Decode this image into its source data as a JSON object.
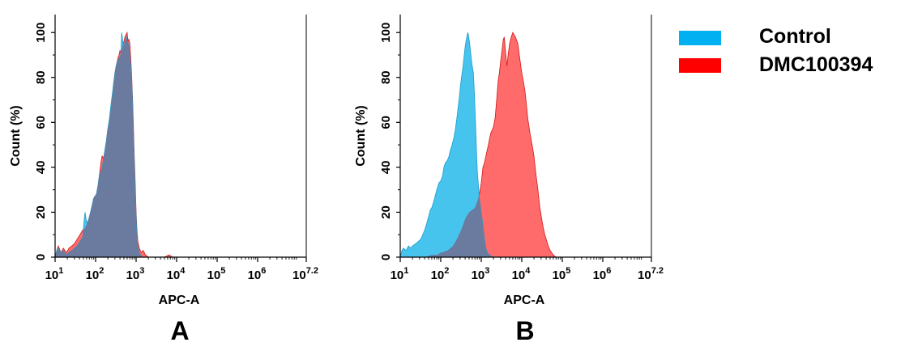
{
  "colors": {
    "control": "#46c4ee",
    "sample": "#ff6b6b",
    "overlap": "#6a7b9f",
    "axis": "#000000"
  },
  "legend": {
    "items": [
      {
        "name": "Control",
        "color": "#00b0f0"
      },
      {
        "name": "DMC100394",
        "color": "#ff0000"
      }
    ]
  },
  "chart_data": [
    {
      "type": "area",
      "panel_label": "A",
      "xlabel": "APC-A",
      "ylabel": "Count  (%)",
      "x_scale": "log",
      "xlim": [
        10,
        15848932
      ],
      "ylim": [
        0,
        108
      ],
      "yticks": [
        0,
        20,
        40,
        60,
        80,
        100
      ],
      "xticks": [
        {
          "value": 10,
          "base": "10",
          "exp": "1"
        },
        {
          "value": 100,
          "base": "10",
          "exp": "2"
        },
        {
          "value": 1000,
          "base": "10",
          "exp": "3"
        },
        {
          "value": 10000,
          "base": "10",
          "exp": "4"
        },
        {
          "value": 100000,
          "base": "10",
          "exp": "5"
        },
        {
          "value": 1000000,
          "base": "10",
          "exp": "6"
        },
        {
          "value": 15848932,
          "base": "10",
          "exp": "7.2"
        }
      ],
      "series": [
        {
          "name": "DMC100394",
          "points": [
            [
              10,
              0
            ],
            [
              11,
              3
            ],
            [
              12,
              5
            ],
            [
              14,
              2
            ],
            [
              16,
              4
            ],
            [
              19,
              2
            ],
            [
              22,
              4
            ],
            [
              26,
              5
            ],
            [
              30,
              6
            ],
            [
              35,
              8
            ],
            [
              41,
              10
            ],
            [
              48,
              12
            ],
            [
              55,
              13
            ],
            [
              62,
              15
            ],
            [
              68,
              17
            ],
            [
              75,
              20
            ],
            [
              82,
              23
            ],
            [
              89,
              26
            ],
            [
              95,
              27
            ],
            [
              105,
              28
            ],
            [
              115,
              32
            ],
            [
              125,
              37
            ],
            [
              135,
              42
            ],
            [
              145,
              45
            ],
            [
              155,
              44
            ],
            [
              170,
              47
            ],
            [
              185,
              52
            ],
            [
              200,
              57
            ],
            [
              220,
              61
            ],
            [
              240,
              67
            ],
            [
              260,
              72
            ],
            [
              280,
              77
            ],
            [
              300,
              82
            ],
            [
              320,
              85
            ],
            [
              340,
              87
            ],
            [
              360,
              89
            ],
            [
              380,
              90
            ],
            [
              400,
              92
            ],
            [
              420,
              91
            ],
            [
              440,
              92
            ],
            [
              460,
              94
            ],
            [
              480,
              95
            ],
            [
              500,
              96
            ],
            [
              530,
              98
            ],
            [
              560,
              99
            ],
            [
              600,
              100
            ],
            [
              630,
              96
            ],
            [
              660,
              97
            ],
            [
              700,
              95
            ],
            [
              740,
              88
            ],
            [
              780,
              80
            ],
            [
              820,
              70
            ],
            [
              860,
              58
            ],
            [
              900,
              45
            ],
            [
              950,
              33
            ],
            [
              1000,
              20
            ],
            [
              1050,
              12
            ],
            [
              1100,
              7
            ],
            [
              1200,
              4
            ],
            [
              1350,
              2
            ],
            [
              1500,
              3
            ],
            [
              1700,
              1
            ],
            [
              2000,
              0
            ],
            [
              5000,
              0
            ],
            [
              6500,
              1
            ],
            [
              8000,
              0
            ],
            [
              15848932,
              0
            ]
          ]
        },
        {
          "name": "Control",
          "points": [
            [
              10,
              0
            ],
            [
              11,
              3
            ],
            [
              12,
              4
            ],
            [
              14,
              2
            ],
            [
              16,
              3
            ],
            [
              19,
              1
            ],
            [
              22,
              2
            ],
            [
              26,
              3
            ],
            [
              30,
              4
            ],
            [
              35,
              5
            ],
            [
              41,
              7
            ],
            [
              48,
              9
            ],
            [
              52,
              16
            ],
            [
              55,
              20
            ],
            [
              58,
              17
            ],
            [
              62,
              15
            ],
            [
              68,
              17
            ],
            [
              75,
              20
            ],
            [
              82,
              23
            ],
            [
              89,
              26
            ],
            [
              95,
              27
            ],
            [
              105,
              28
            ],
            [
              115,
              32
            ],
            [
              125,
              37
            ],
            [
              135,
              38
            ],
            [
              145,
              40
            ],
            [
              155,
              43
            ],
            [
              170,
              48
            ],
            [
              185,
              52
            ],
            [
              200,
              57
            ],
            [
              220,
              62
            ],
            [
              240,
              68
            ],
            [
              260,
              73
            ],
            [
              280,
              78
            ],
            [
              300,
              82
            ],
            [
              330,
              86
            ],
            [
              360,
              88
            ],
            [
              390,
              89
            ],
            [
              420,
              90
            ],
            [
              440,
              100
            ],
            [
              470,
              96
            ],
            [
              500,
              93
            ],
            [
              520,
              95
            ],
            [
              550,
              97
            ],
            [
              580,
              98
            ],
            [
              620,
              96
            ],
            [
              660,
              94
            ],
            [
              700,
              90
            ],
            [
              740,
              85
            ],
            [
              780,
              78
            ],
            [
              820,
              68
            ],
            [
              860,
              55
            ],
            [
              900,
              42
            ],
            [
              950,
              30
            ],
            [
              1000,
              18
            ],
            [
              1050,
              10
            ],
            [
              1100,
              5
            ],
            [
              1200,
              2
            ],
            [
              1400,
              0
            ],
            [
              15848932,
              0
            ]
          ]
        }
      ]
    },
    {
      "type": "area",
      "panel_label": "B",
      "xlabel": "APC-A",
      "ylabel": "Count  (%)",
      "x_scale": "log",
      "xlim": [
        10,
        15848932
      ],
      "ylim": [
        0,
        108
      ],
      "yticks": [
        0,
        20,
        40,
        60,
        80,
        100
      ],
      "xticks": [
        {
          "value": 10,
          "base": "10",
          "exp": "1"
        },
        {
          "value": 100,
          "base": "10",
          "exp": "2"
        },
        {
          "value": 1000,
          "base": "10",
          "exp": "3"
        },
        {
          "value": 10000,
          "base": "10",
          "exp": "4"
        },
        {
          "value": 100000,
          "base": "10",
          "exp": "5"
        },
        {
          "value": 1000000,
          "base": "10",
          "exp": "6"
        },
        {
          "value": 15848932,
          "base": "10",
          "exp": "7.2"
        }
      ],
      "series": [
        {
          "name": "DMC100394",
          "points": [
            [
              10,
              0
            ],
            [
              40,
              0
            ],
            [
              60,
              1
            ],
            [
              80,
              1
            ],
            [
              100,
              2
            ],
            [
              150,
              3
            ],
            [
              200,
              5
            ],
            [
              250,
              8
            ],
            [
              300,
              11
            ],
            [
              350,
              14
            ],
            [
              400,
              17
            ],
            [
              500,
              20
            ],
            [
              600,
              21
            ],
            [
              700,
              22
            ],
            [
              800,
              25
            ],
            [
              900,
              28
            ],
            [
              1000,
              33
            ],
            [
              1100,
              40
            ],
            [
              1200,
              42
            ],
            [
              1300,
              45
            ],
            [
              1500,
              50
            ],
            [
              1700,
              55
            ],
            [
              2000,
              58
            ],
            [
              2200,
              62
            ],
            [
              2400,
              70
            ],
            [
              2600,
              78
            ],
            [
              2800,
              82
            ],
            [
              3000,
              87
            ],
            [
              3300,
              93
            ],
            [
              3500,
              97
            ],
            [
              3700,
              98
            ],
            [
              4000,
              91
            ],
            [
              4300,
              85
            ],
            [
              4600,
              90
            ],
            [
              5000,
              95
            ],
            [
              5500,
              98
            ],
            [
              6000,
              100
            ],
            [
              7000,
              98
            ],
            [
              8000,
              95
            ],
            [
              9000,
              88
            ],
            [
              10000,
              82
            ],
            [
              11000,
              78
            ],
            [
              12000,
              74
            ],
            [
              13000,
              68
            ],
            [
              14000,
              62
            ],
            [
              16000,
              55
            ],
            [
              18000,
              50
            ],
            [
              20000,
              45
            ],
            [
              22000,
              38
            ],
            [
              25000,
              30
            ],
            [
              28000,
              22
            ],
            [
              31000,
              17
            ],
            [
              34000,
              13
            ],
            [
              37000,
              10
            ],
            [
              40000,
              8
            ],
            [
              45000,
              5
            ],
            [
              50000,
              3
            ],
            [
              55000,
              2
            ],
            [
              60000,
              1
            ],
            [
              70000,
              0
            ],
            [
              15848932,
              0
            ]
          ]
        },
        {
          "name": "Control",
          "points": [
            [
              10,
              0
            ],
            [
              11,
              3
            ],
            [
              12,
              4
            ],
            [
              14,
              3
            ],
            [
              16,
              5
            ],
            [
              18,
              4
            ],
            [
              20,
              5
            ],
            [
              24,
              6
            ],
            [
              28,
              7
            ],
            [
              32,
              8
            ],
            [
              36,
              10
            ],
            [
              40,
              12
            ],
            [
              45,
              15
            ],
            [
              50,
              18
            ],
            [
              55,
              21
            ],
            [
              60,
              22
            ],
            [
              65,
              24
            ],
            [
              70,
              26
            ],
            [
              80,
              30
            ],
            [
              90,
              33
            ],
            [
              100,
              34
            ],
            [
              110,
              36
            ],
            [
              120,
              40
            ],
            [
              130,
              42
            ],
            [
              145,
              43
            ],
            [
              160,
              45
            ],
            [
              175,
              48
            ],
            [
              190,
              50
            ],
            [
              210,
              53
            ],
            [
              230,
              57
            ],
            [
              250,
              62
            ],
            [
              270,
              67
            ],
            [
              290,
              72
            ],
            [
              310,
              77
            ],
            [
              330,
              81
            ],
            [
              350,
              84
            ],
            [
              370,
              88
            ],
            [
              390,
              92
            ],
            [
              410,
              95
            ],
            [
              430,
              97
            ],
            [
              450,
              99
            ],
            [
              470,
              100
            ],
            [
              490,
              98
            ],
            [
              510,
              96
            ],
            [
              540,
              92
            ],
            [
              570,
              88
            ],
            [
              600,
              85
            ],
            [
              640,
              82
            ],
            [
              680,
              72
            ],
            [
              720,
              60
            ],
            [
              760,
              48
            ],
            [
              800,
              38
            ],
            [
              850,
              32
            ],
            [
              900,
              26
            ],
            [
              1000,
              20
            ],
            [
              1100,
              14
            ],
            [
              1200,
              8
            ],
            [
              1300,
              4
            ],
            [
              1400,
              2
            ],
            [
              1600,
              1
            ],
            [
              2000,
              0
            ],
            [
              15848932,
              0
            ]
          ]
        }
      ]
    }
  ]
}
